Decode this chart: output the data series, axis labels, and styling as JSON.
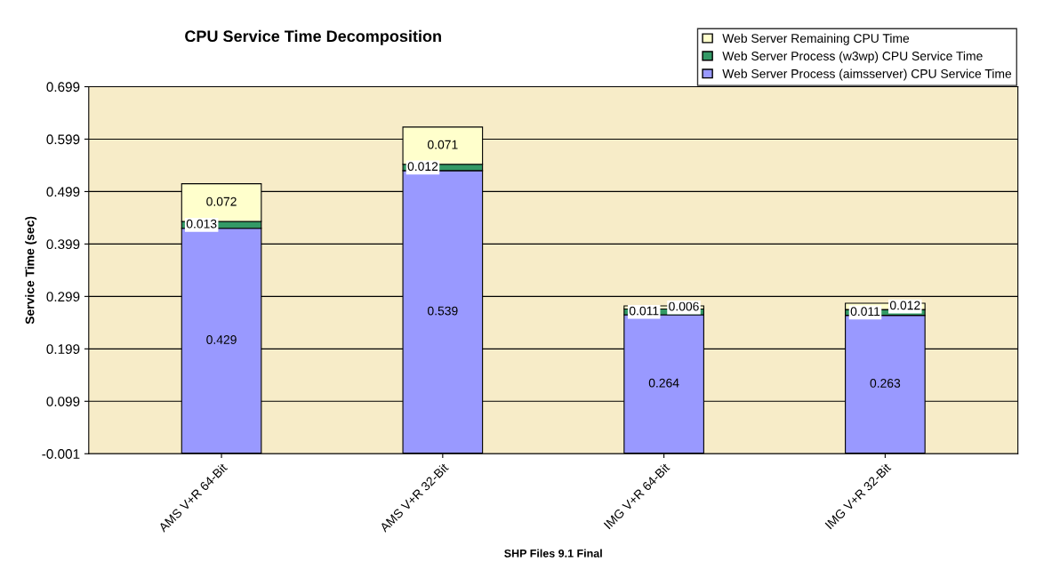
{
  "chart_data": {
    "type": "bar",
    "title": "CPU Service Time Decomposition",
    "ylabel": "Service Time (sec)",
    "xlabel": "SHP Files 9.1 Final",
    "categories": [
      "AMS V+R 64-Bit",
      "AMS V+R 32-Bit",
      "IMG V+R 64-Bit",
      "IMG V+R 32-Bit"
    ],
    "stacked": true,
    "data_labels": true,
    "grid": "y",
    "legend": "top right",
    "ylim": [
      -0.001,
      0.699
    ],
    "yticks": [
      -0.001,
      0.099,
      0.199,
      0.299,
      0.399,
      0.499,
      0.599,
      0.699
    ],
    "series": [
      {
        "name": "Web Server Process (aimsserver) CPU Service Time",
        "color": "#9999ff",
        "values": [
          0.429,
          0.539,
          0.264,
          0.263
        ]
      },
      {
        "name": "Web Server Process (w3wp) CPU Service Time",
        "color": "#339966",
        "values": [
          0.013,
          0.012,
          0.011,
          0.011
        ]
      },
      {
        "name": "Web Server Remaining CPU Time",
        "color": "#ffffcc",
        "values": [
          0.072,
          0.071,
          0.006,
          0.012
        ]
      }
    ]
  }
}
